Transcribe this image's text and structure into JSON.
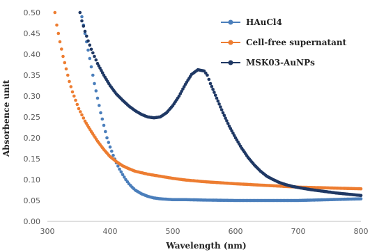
{
  "chart_data": {
    "type": "scatter",
    "title": "",
    "xlabel": "Wavelength  (nm)",
    "ylabel": "Absorbence unit",
    "xlim": [
      300,
      800
    ],
    "ylim": [
      0.0,
      0.5
    ],
    "x_ticks": [
      "300",
      "400",
      "500",
      "600",
      "700",
      "800"
    ],
    "y_ticks": [
      "0.00",
      "0.05",
      "0.10",
      "0.15",
      "0.20",
      "0.25",
      "0.30",
      "0.35",
      "0.40",
      "0.45",
      "0.50"
    ],
    "grid": false,
    "legend_position": "top-right",
    "series": [
      {
        "name": "HAuCl4",
        "color": "#4a7ebb",
        "points": [
          [
            355,
            0.49
          ],
          [
            360,
            0.45
          ],
          [
            365,
            0.41
          ],
          [
            370,
            0.37
          ],
          [
            375,
            0.33
          ],
          [
            380,
            0.295
          ],
          [
            385,
            0.26
          ],
          [
            390,
            0.23
          ],
          [
            395,
            0.2
          ],
          [
            400,
            0.178
          ],
          [
            405,
            0.158
          ],
          [
            410,
            0.14
          ],
          [
            415,
            0.125
          ],
          [
            420,
            0.112
          ],
          [
            425,
            0.1
          ],
          [
            430,
            0.09
          ],
          [
            435,
            0.082
          ],
          [
            440,
            0.075
          ],
          [
            450,
            0.066
          ],
          [
            460,
            0.06
          ],
          [
            470,
            0.056
          ],
          [
            480,
            0.054
          ],
          [
            500,
            0.052
          ],
          [
            520,
            0.052
          ],
          [
            550,
            0.051
          ],
          [
            600,
            0.05
          ],
          [
            650,
            0.05
          ],
          [
            700,
            0.05
          ],
          [
            750,
            0.052
          ],
          [
            800,
            0.054
          ]
        ]
      },
      {
        "name": "Cell-free supernatant",
        "color": "#ed7d31",
        "points": [
          [
            312,
            0.5
          ],
          [
            315,
            0.47
          ],
          [
            320,
            0.43
          ],
          [
            325,
            0.395
          ],
          [
            330,
            0.365
          ],
          [
            335,
            0.335
          ],
          [
            340,
            0.31
          ],
          [
            345,
            0.29
          ],
          [
            350,
            0.27
          ],
          [
            355,
            0.255
          ],
          [
            360,
            0.24
          ],
          [
            370,
            0.215
          ],
          [
            380,
            0.192
          ],
          [
            390,
            0.172
          ],
          [
            400,
            0.155
          ],
          [
            410,
            0.143
          ],
          [
            420,
            0.133
          ],
          [
            430,
            0.126
          ],
          [
            440,
            0.12
          ],
          [
            460,
            0.113
          ],
          [
            480,
            0.108
          ],
          [
            500,
            0.103
          ],
          [
            520,
            0.099
          ],
          [
            550,
            0.095
          ],
          [
            600,
            0.09
          ],
          [
            650,
            0.086
          ],
          [
            700,
            0.082
          ],
          [
            750,
            0.08
          ],
          [
            800,
            0.078
          ]
        ]
      },
      {
        "name": "MSK03-AuNPs",
        "color": "#1f3864",
        "points": [
          [
            352,
            0.5
          ],
          [
            355,
            0.48
          ],
          [
            360,
            0.455
          ],
          [
            365,
            0.432
          ],
          [
            370,
            0.412
          ],
          [
            375,
            0.395
          ],
          [
            380,
            0.378
          ],
          [
            390,
            0.35
          ],
          [
            400,
            0.325
          ],
          [
            410,
            0.305
          ],
          [
            420,
            0.29
          ],
          [
            430,
            0.276
          ],
          [
            440,
            0.265
          ],
          [
            450,
            0.256
          ],
          [
            460,
            0.25
          ],
          [
            470,
            0.248
          ],
          [
            480,
            0.25
          ],
          [
            490,
            0.26
          ],
          [
            500,
            0.277
          ],
          [
            510,
            0.3
          ],
          [
            520,
            0.328
          ],
          [
            530,
            0.352
          ],
          [
            540,
            0.363
          ],
          [
            550,
            0.36
          ],
          [
            555,
            0.35
          ],
          [
            560,
            0.33
          ],
          [
            570,
            0.295
          ],
          [
            580,
            0.26
          ],
          [
            590,
            0.228
          ],
          [
            600,
            0.2
          ],
          [
            610,
            0.175
          ],
          [
            620,
            0.153
          ],
          [
            630,
            0.135
          ],
          [
            640,
            0.12
          ],
          [
            650,
            0.108
          ],
          [
            660,
            0.1
          ],
          [
            670,
            0.093
          ],
          [
            680,
            0.088
          ],
          [
            690,
            0.084
          ],
          [
            700,
            0.081
          ],
          [
            720,
            0.076
          ],
          [
            740,
            0.072
          ],
          [
            760,
            0.068
          ],
          [
            780,
            0.065
          ],
          [
            800,
            0.062
          ]
        ]
      }
    ]
  }
}
